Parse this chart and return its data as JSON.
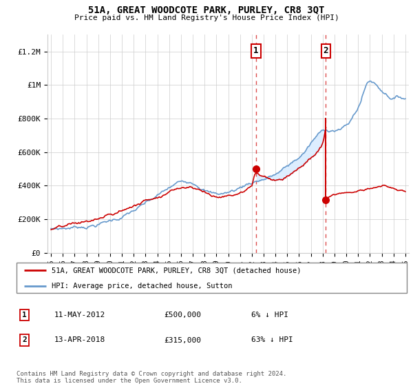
{
  "title": "51A, GREAT WOODCOTE PARK, PURLEY, CR8 3QT",
  "subtitle": "Price paid vs. HM Land Registry's House Price Index (HPI)",
  "ylabel_ticks": [
    0,
    200000,
    400000,
    600000,
    800000,
    1000000,
    1200000
  ],
  "ylabel_labels": [
    "£0",
    "£200K",
    "£400K",
    "£600K",
    "£800K",
    "£1M",
    "£1.2M"
  ],
  "ylim": [
    0,
    1300000
  ],
  "event1_year": 2012.35,
  "event1_price": 500000,
  "event2_year": 2018.27,
  "event2_price": 315000,
  "hpi_color": "#6699cc",
  "prop_color": "#cc0000",
  "fill_color": "#ddeeff",
  "legend_label1": "51A, GREAT WOODCOTE PARK, PURLEY, CR8 3QT (detached house)",
  "legend_label2": "HPI: Average price, detached house, Sutton",
  "event1_date": "11-MAY-2012",
  "event1_amount": "£500,000",
  "event1_hpi": "6% ↓ HPI",
  "event2_date": "13-APR-2018",
  "event2_amount": "£315,000",
  "event2_hpi": "63% ↓ HPI",
  "footer": "Contains HM Land Registry data © Crown copyright and database right 2024.\nThis data is licensed under the Open Government Licence v3.0.",
  "xlim_left": 1994.7,
  "xlim_right": 2025.3
}
